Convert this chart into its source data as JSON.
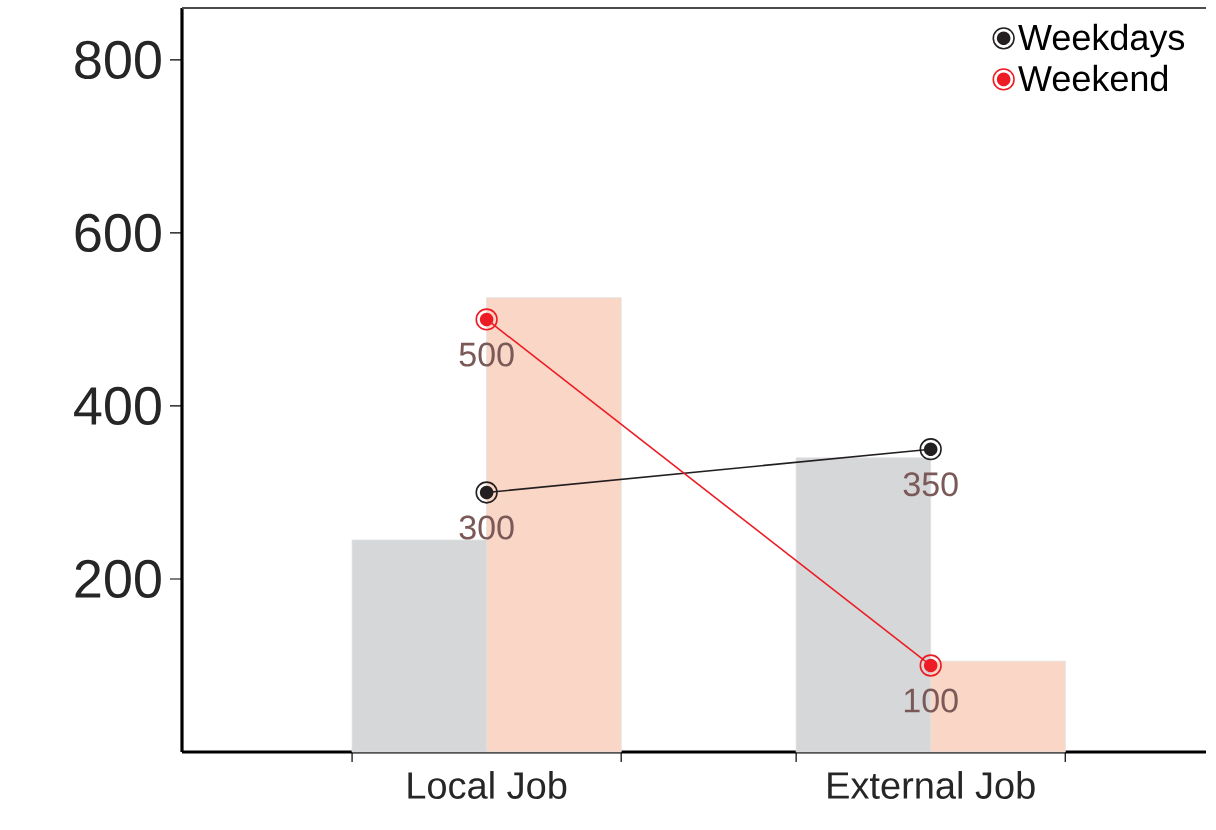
{
  "chart_data": {
    "type": "bar",
    "categories": [
      "Local Job",
      "External Job"
    ],
    "ylim": [
      0,
      860
    ],
    "yticks": [
      200,
      400,
      600,
      800
    ],
    "legend": "top right",
    "marker": "circle",
    "series": [
      {
        "color": "#d6d7d9",
        "values": [
          245,
          340
        ]
      },
      {
        "color": "#fad6c6",
        "values": [
          525,
          105
        ]
      },
      {
        "name": "Weekdays",
        "type": "line",
        "color": "#231f20",
        "values": [
          300,
          350
        ],
        "value_labels": [
          "300",
          "350"
        ]
      },
      {
        "name": "Weekend",
        "type": "line",
        "color": "#ed1c24",
        "values": [
          500,
          100
        ],
        "value_labels": [
          "500",
          "100"
        ]
      }
    ]
  }
}
